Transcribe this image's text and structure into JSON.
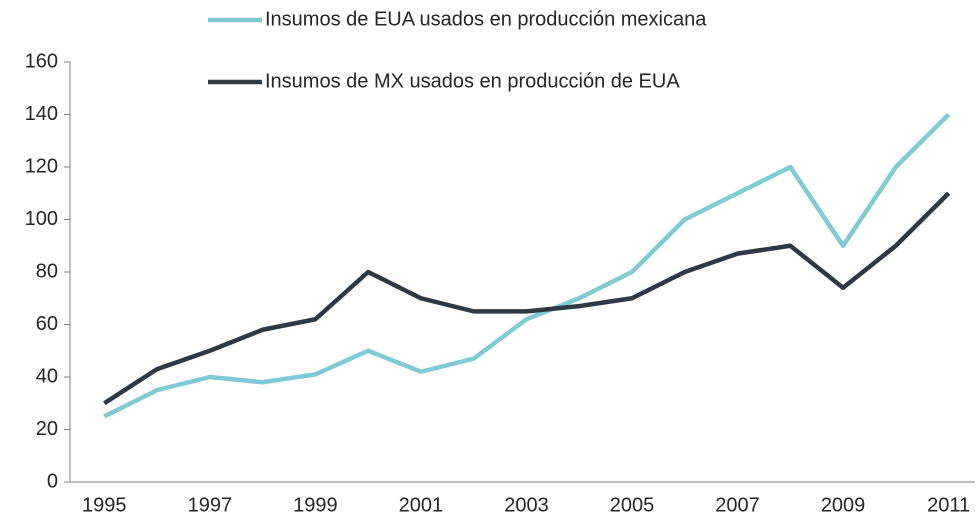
{
  "chart_data": {
    "type": "line",
    "x": [
      1995,
      1996,
      1997,
      1998,
      1999,
      2000,
      2001,
      2002,
      2003,
      2004,
      2005,
      2006,
      2007,
      2008,
      2009,
      2010,
      2011
    ],
    "series": [
      {
        "name": "Insumos de EUA usados en producción mexicana",
        "color": "#7fcad5",
        "values": [
          25,
          35,
          40,
          38,
          41,
          50,
          42,
          47,
          62,
          70,
          80,
          100,
          110,
          120,
          90,
          120,
          140
        ]
      },
      {
        "name": "Insumos de MX usados en producción de EUA",
        "color": "#2d3945",
        "values": [
          30,
          43,
          50,
          58,
          62,
          80,
          70,
          65,
          65,
          67,
          70,
          80,
          87,
          90,
          74,
          90,
          110
        ]
      }
    ],
    "xlim": [
      1994.35,
      2011.5
    ],
    "xticks": [
      1995,
      1997,
      1999,
      2001,
      2003,
      2005,
      2007,
      2009,
      2011
    ],
    "ylim": [
      0,
      160
    ],
    "yticks": [
      0,
      20,
      40,
      60,
      80,
      100,
      120,
      140,
      160
    ],
    "grid": false
  }
}
